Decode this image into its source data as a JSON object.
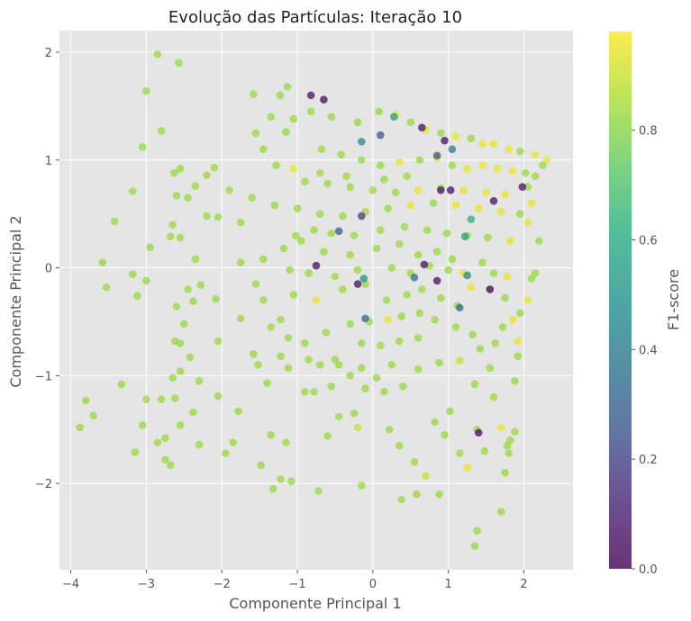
{
  "chart_data": {
    "type": "scatter",
    "title": "Evolução das Partículas: Iteração 10",
    "xlabel": "Componente Principal 1",
    "ylabel": "Componente Principal 2",
    "xlim": [
      -4.15,
      2.65
    ],
    "ylim": [
      -2.8,
      2.2
    ],
    "xticks": [
      -4,
      -3,
      -2,
      -1,
      0,
      1,
      2
    ],
    "yticks": [
      -2,
      -1,
      0,
      1,
      2
    ],
    "grid": true,
    "colorbar": {
      "label": "F1-score",
      "range": [
        0.0,
        0.98
      ],
      "ticks": [
        0.0,
        0.2,
        0.4,
        0.6,
        0.8
      ],
      "colormap": "viridis"
    },
    "background_color": "#e5e5e5",
    "point_alpha": 0.75,
    "points": [
      [
        -2.85,
        1.98,
        0.83
      ],
      [
        -2.57,
        1.9,
        0.83
      ],
      [
        -3.0,
        1.64,
        0.83
      ],
      [
        -2.8,
        1.27,
        0.83
      ],
      [
        -3.05,
        1.12,
        0.83
      ],
      [
        -3.18,
        0.71,
        0.83
      ],
      [
        -3.42,
        0.43,
        0.83
      ],
      [
        -3.58,
        0.05,
        0.83
      ],
      [
        -3.53,
        -0.18,
        0.83
      ],
      [
        -3.18,
        -0.06,
        0.83
      ],
      [
        -3.12,
        -0.26,
        0.83
      ],
      [
        -3.0,
        -0.12,
        0.83
      ],
      [
        -2.95,
        0.19,
        0.83
      ],
      [
        -2.68,
        0.29,
        0.83
      ],
      [
        -2.65,
        0.4,
        0.83
      ],
      [
        -2.6,
        0.67,
        0.83
      ],
      [
        -2.63,
        0.88,
        0.83
      ],
      [
        -2.55,
        0.92,
        0.83
      ],
      [
        -2.45,
        0.65,
        0.83
      ],
      [
        -2.35,
        0.76,
        0.83
      ],
      [
        -2.2,
        0.86,
        0.83
      ],
      [
        -2.1,
        0.93,
        0.83
      ],
      [
        -1.58,
        1.61,
        0.83
      ],
      [
        -1.23,
        1.6,
        0.83
      ],
      [
        -1.13,
        1.68,
        0.83
      ],
      [
        -1.55,
        1.25,
        0.83
      ],
      [
        -1.45,
        1.1,
        0.83
      ],
      [
        -1.15,
        1.26,
        0.83
      ],
      [
        -2.2,
        0.48,
        0.83
      ],
      [
        -2.05,
        0.47,
        0.83
      ],
      [
        -1.75,
        0.42,
        0.83
      ],
      [
        -2.55,
        0.28,
        0.83
      ],
      [
        -2.35,
        0.08,
        0.83
      ],
      [
        -2.28,
        -0.16,
        0.83
      ],
      [
        -2.08,
        -0.29,
        0.83
      ],
      [
        -2.38,
        -0.31,
        0.83
      ],
      [
        -2.45,
        -0.2,
        0.83
      ],
      [
        -2.6,
        -0.36,
        0.83
      ],
      [
        -2.5,
        -0.52,
        0.83
      ],
      [
        -2.55,
        -0.7,
        0.83
      ],
      [
        -2.62,
        -0.68,
        0.83
      ],
      [
        -2.42,
        -0.83,
        0.83
      ],
      [
        -2.05,
        -0.68,
        0.83
      ],
      [
        -2.3,
        -1.05,
        0.83
      ],
      [
        -2.55,
        -0.96,
        0.83
      ],
      [
        -2.65,
        -1.02,
        0.83
      ],
      [
        -2.8,
        -1.22,
        0.83
      ],
      [
        -2.62,
        -1.21,
        0.83
      ],
      [
        -2.55,
        -1.46,
        0.83
      ],
      [
        -2.38,
        -1.34,
        0.83
      ],
      [
        -2.05,
        -1.19,
        0.83
      ],
      [
        -1.78,
        -1.33,
        0.83
      ],
      [
        -1.85,
        -1.62,
        0.83
      ],
      [
        -1.95,
        -1.72,
        0.83
      ],
      [
        -2.3,
        -1.64,
        0.83
      ],
      [
        -2.75,
        -1.58,
        0.83
      ],
      [
        -2.85,
        -1.62,
        0.83
      ],
      [
        -2.75,
        -1.78,
        0.83
      ],
      [
        -2.68,
        -1.83,
        0.83
      ],
      [
        -3.15,
        -1.71,
        0.83
      ],
      [
        -3.05,
        -1.46,
        0.83
      ],
      [
        -3.0,
        -1.22,
        0.83
      ],
      [
        -3.33,
        -1.08,
        0.83
      ],
      [
        -3.7,
        -1.37,
        0.83
      ],
      [
        -3.8,
        -1.23,
        0.83
      ],
      [
        -3.88,
        -1.48,
        0.83
      ],
      [
        -1.48,
        -1.83,
        0.83
      ],
      [
        -1.08,
        -1.98,
        0.83
      ],
      [
        -1.22,
        -1.96,
        0.83
      ],
      [
        -1.32,
        -2.05,
        0.83
      ],
      [
        -0.72,
        -2.07,
        0.83
      ],
      [
        -0.15,
        -2.02,
        0.83
      ],
      [
        0.38,
        -2.15,
        0.83
      ],
      [
        0.58,
        -2.1,
        0.83
      ],
      [
        0.88,
        -2.1,
        0.83
      ],
      [
        1.38,
        -2.44,
        0.83
      ],
      [
        1.7,
        -2.26,
        0.83
      ],
      [
        1.35,
        -2.58,
        0.83
      ],
      [
        -1.35,
        -1.55,
        0.83
      ],
      [
        -1.15,
        -1.62,
        0.83
      ],
      [
        -0.6,
        -1.56,
        0.83
      ],
      [
        -0.45,
        -1.38,
        0.83
      ],
      [
        -0.25,
        -1.35,
        0.83
      ],
      [
        -0.2,
        -1.48,
        0.9
      ],
      [
        0.22,
        -1.5,
        0.83
      ],
      [
        0.35,
        -1.65,
        0.83
      ],
      [
        0.55,
        -1.8,
        0.83
      ],
      [
        0.7,
        -1.93,
        0.9
      ],
      [
        0.95,
        -1.55,
        0.83
      ],
      [
        1.15,
        -1.72,
        0.83
      ],
      [
        1.25,
        -1.85,
        0.95
      ],
      [
        1.48,
        -1.7,
        0.83
      ],
      [
        1.75,
        -1.9,
        0.83
      ],
      [
        1.8,
        -1.72,
        0.83
      ],
      [
        1.82,
        -1.6,
        0.83
      ],
      [
        1.7,
        -1.48,
        0.95
      ],
      [
        1.88,
        -1.52,
        0.83
      ],
      [
        1.78,
        -1.65,
        0.83
      ],
      [
        1.38,
        -1.5,
        0.83
      ],
      [
        1.02,
        -1.33,
        0.83
      ],
      [
        0.82,
        -1.43,
        0.83
      ],
      [
        0.15,
        -1.15,
        0.83
      ],
      [
        -0.1,
        -1.12,
        0.83
      ],
      [
        -0.55,
        -1.1,
        0.83
      ],
      [
        -0.9,
        -1.15,
        0.83
      ],
      [
        -0.78,
        -1.15,
        0.83
      ],
      [
        -1.12,
        -0.93,
        0.83
      ],
      [
        -1.4,
        -1.07,
        0.83
      ],
      [
        -1.52,
        -0.9,
        0.83
      ],
      [
        -1.58,
        -0.8,
        0.83
      ],
      [
        -1.22,
        -0.82,
        0.83
      ],
      [
        -0.85,
        -0.85,
        0.83
      ],
      [
        -0.7,
        -0.9,
        0.83
      ],
      [
        -0.45,
        -0.9,
        0.83
      ],
      [
        -0.15,
        -0.93,
        0.83
      ],
      [
        0.25,
        -0.9,
        0.83
      ],
      [
        0.6,
        -0.94,
        0.83
      ],
      [
        0.88,
        -0.88,
        0.83
      ],
      [
        1.15,
        -0.86,
        0.9
      ],
      [
        1.35,
        -1.08,
        0.83
      ],
      [
        1.55,
        -0.93,
        0.83
      ],
      [
        1.6,
        -1.2,
        0.83
      ],
      [
        1.88,
        -1.05,
        0.83
      ],
      [
        1.92,
        -0.82,
        0.83
      ],
      [
        1.92,
        -0.68,
        0.95
      ],
      [
        -1.75,
        -0.47,
        0.83
      ],
      [
        -1.45,
        -0.3,
        0.83
      ],
      [
        -1.22,
        -0.48,
        0.83
      ],
      [
        -1.35,
        -0.55,
        0.83
      ],
      [
        -1.12,
        -0.65,
        0.83
      ],
      [
        -0.9,
        -0.7,
        0.83
      ],
      [
        -0.62,
        -0.6,
        0.83
      ],
      [
        -0.3,
        -0.52,
        0.83
      ],
      [
        -0.05,
        -0.5,
        0.83
      ],
      [
        0.2,
        -0.48,
        0.95
      ],
      [
        0.38,
        -0.45,
        0.83
      ],
      [
        0.62,
        -0.42,
        0.83
      ],
      [
        0.82,
        -0.48,
        0.83
      ],
      [
        1.1,
        -0.55,
        0.83
      ],
      [
        1.32,
        -0.62,
        0.83
      ],
      [
        1.42,
        -0.75,
        0.83
      ],
      [
        1.62,
        -0.7,
        0.83
      ],
      [
        1.72,
        -0.55,
        0.83
      ],
      [
        1.85,
        -0.48,
        0.95
      ],
      [
        1.95,
        -0.42,
        0.83
      ],
      [
        2.05,
        -0.3,
        0.95
      ],
      [
        2.1,
        -0.1,
        0.83
      ],
      [
        1.75,
        -0.28,
        0.83
      ],
      [
        1.55,
        -0.2,
        0.83
      ],
      [
        1.3,
        -0.18,
        0.95
      ],
      [
        1.12,
        -0.35,
        0.83
      ],
      [
        0.9,
        -0.28,
        0.83
      ],
      [
        0.65,
        -0.2,
        0.83
      ],
      [
        0.45,
        -0.25,
        0.83
      ],
      [
        0.18,
        -0.3,
        0.83
      ],
      [
        -0.1,
        -0.15,
        0.83
      ],
      [
        -0.4,
        -0.2,
        0.83
      ],
      [
        -0.75,
        -0.3,
        0.95
      ],
      [
        -1.05,
        -0.25,
        0.83
      ],
      [
        -1.55,
        -0.15,
        0.83
      ],
      [
        -1.75,
        0.05,
        0.83
      ],
      [
        -1.45,
        0.08,
        0.83
      ],
      [
        -1.18,
        0.18,
        0.83
      ],
      [
        -0.95,
        0.25,
        0.83
      ],
      [
        -0.65,
        0.15,
        0.83
      ],
      [
        -0.3,
        0.12,
        0.83
      ],
      [
        0.05,
        0.18,
        0.83
      ],
      [
        0.35,
        0.22,
        0.83
      ],
      [
        0.6,
        0.12,
        0.83
      ],
      [
        0.85,
        0.15,
        0.83
      ],
      [
        1.05,
        0.08,
        0.83
      ],
      [
        1.2,
        -0.05,
        0.95
      ],
      [
        1.45,
        0.05,
        0.83
      ],
      [
        1.6,
        -0.05,
        0.83
      ],
      [
        1.78,
        -0.08,
        0.95
      ],
      [
        2.15,
        -0.05,
        0.83
      ],
      [
        2.2,
        0.25,
        0.83
      ],
      [
        2.05,
        0.42,
        0.95
      ],
      [
        2.1,
        0.6,
        0.95
      ],
      [
        2.05,
        0.75,
        0.83
      ],
      [
        2.15,
        0.85,
        0.83
      ],
      [
        2.25,
        0.95,
        0.83
      ],
      [
        2.3,
        1.0,
        0.95
      ],
      [
        2.15,
        1.05,
        0.95
      ],
      [
        1.95,
        1.08,
        0.83
      ],
      [
        1.8,
        1.1,
        0.95
      ],
      [
        1.6,
        1.15,
        0.95
      ],
      [
        1.45,
        1.15,
        0.95
      ],
      [
        1.3,
        1.2,
        0.83
      ],
      [
        1.1,
        1.22,
        0.95
      ],
      [
        0.9,
        1.25,
        0.83
      ],
      [
        0.7,
        1.28,
        0.95
      ],
      [
        0.5,
        1.35,
        0.83
      ],
      [
        0.3,
        1.42,
        0.95
      ],
      [
        0.08,
        1.45,
        0.83
      ],
      [
        -0.2,
        1.35,
        0.83
      ],
      [
        -0.55,
        1.4,
        0.83
      ],
      [
        -0.82,
        1.45,
        0.83
      ],
      [
        -1.05,
        1.38,
        0.83
      ],
      [
        -1.35,
        1.4,
        0.83
      ],
      [
        -0.68,
        1.1,
        0.83
      ],
      [
        -0.42,
        1.05,
        0.83
      ],
      [
        -0.15,
        1.0,
        0.83
      ],
      [
        0.1,
        0.95,
        0.83
      ],
      [
        0.35,
        0.98,
        0.95
      ],
      [
        0.62,
        1.0,
        0.83
      ],
      [
        0.85,
        1.02,
        0.95
      ],
      [
        1.05,
        0.95,
        0.83
      ],
      [
        1.25,
        0.92,
        0.95
      ],
      [
        1.45,
        0.95,
        0.95
      ],
      [
        1.65,
        0.92,
        0.95
      ],
      [
        1.85,
        0.9,
        0.95
      ],
      [
        2.02,
        0.88,
        0.83
      ],
      [
        -1.9,
        0.72,
        0.83
      ],
      [
        -1.6,
        0.65,
        0.83
      ],
      [
        -1.3,
        0.58,
        0.83
      ],
      [
        -1.0,
        0.55,
        0.83
      ],
      [
        -0.7,
        0.5,
        0.83
      ],
      [
        -0.4,
        0.48,
        0.83
      ],
      [
        -0.1,
        0.52,
        0.83
      ],
      [
        0.2,
        0.55,
        0.83
      ],
      [
        0.5,
        0.58,
        0.95
      ],
      [
        0.8,
        0.6,
        0.83
      ],
      [
        1.1,
        0.58,
        0.95
      ],
      [
        1.4,
        0.55,
        0.95
      ],
      [
        1.7,
        0.52,
        0.95
      ],
      [
        1.95,
        0.5,
        0.83
      ],
      [
        -0.9,
        0.8,
        0.83
      ],
      [
        -0.6,
        0.78,
        0.83
      ],
      [
        -0.3,
        0.75,
        0.83
      ],
      [
        0.0,
        0.72,
        0.83
      ],
      [
        0.3,
        0.7,
        0.83
      ],
      [
        0.6,
        0.72,
        0.95
      ],
      [
        0.9,
        0.74,
        0.83
      ],
      [
        1.2,
        0.72,
        0.95
      ],
      [
        1.5,
        0.7,
        0.95
      ],
      [
        1.75,
        0.68,
        0.95
      ],
      [
        -1.1,
        -0.02,
        0.83
      ],
      [
        -0.85,
        -0.05,
        0.83
      ],
      [
        -0.5,
        -0.08,
        0.83
      ],
      [
        -0.2,
        -0.02,
        0.83
      ],
      [
        0.25,
        0.0,
        0.83
      ],
      [
        0.5,
        -0.05,
        0.83
      ],
      [
        0.75,
        0.02,
        0.83
      ],
      [
        1.0,
        -0.02,
        0.83
      ],
      [
        -1.28,
        0.95,
        0.83
      ],
      [
        -1.05,
        0.92,
        0.95
      ],
      [
        -0.7,
        0.88,
        0.83
      ],
      [
        -0.35,
        0.85,
        0.83
      ],
      [
        0.15,
        0.82,
        0.83
      ],
      [
        0.45,
        0.85,
        0.83
      ],
      [
        -0.15,
        -0.7,
        0.83
      ],
      [
        0.1,
        -0.72,
        0.83
      ],
      [
        0.35,
        -0.68,
        0.83
      ],
      [
        0.6,
        -0.65,
        0.83
      ],
      [
        -0.5,
        -0.85,
        0.83
      ],
      [
        -0.3,
        -1.0,
        0.83
      ],
      [
        0.05,
        -1.02,
        0.83
      ],
      [
        0.4,
        -1.1,
        0.83
      ],
      [
        -1.02,
        0.3,
        0.83
      ],
      [
        -0.78,
        0.35,
        0.83
      ],
      [
        -0.55,
        0.32,
        0.83
      ],
      [
        -0.25,
        0.3,
        0.83
      ],
      [
        0.1,
        0.35,
        0.83
      ],
      [
        0.42,
        0.38,
        0.83
      ],
      [
        0.72,
        0.35,
        0.83
      ],
      [
        0.98,
        0.32,
        0.83
      ],
      [
        1.25,
        0.3,
        0.83
      ],
      [
        1.52,
        0.28,
        0.83
      ],
      [
        1.82,
        0.25,
        0.95
      ],
      [
        -0.82,
        1.6,
        0.05
      ],
      [
        -0.65,
        1.56,
        0.05
      ],
      [
        0.65,
        1.3,
        0.05
      ],
      [
        0.9,
        0.72,
        0.05
      ],
      [
        1.03,
        0.72,
        0.05
      ],
      [
        1.6,
        0.62,
        0.05
      ],
      [
        1.98,
        0.75,
        0.05
      ],
      [
        0.68,
        0.03,
        0.05
      ],
      [
        -0.75,
        0.02,
        0.05
      ],
      [
        -0.2,
        -0.15,
        0.05
      ],
      [
        0.85,
        -0.12,
        0.05
      ],
      [
        1.55,
        -0.2,
        0.05
      ],
      [
        1.4,
        -1.53,
        0.05
      ],
      [
        0.95,
        1.18,
        0.05
      ],
      [
        -0.15,
        0.48,
        0.18
      ],
      [
        0.1,
        1.23,
        0.25
      ],
      [
        0.85,
        1.04,
        0.25
      ],
      [
        -0.45,
        0.34,
        0.28
      ],
      [
        -0.1,
        -0.47,
        0.32
      ],
      [
        1.15,
        -0.37,
        0.32
      ],
      [
        0.55,
        -0.09,
        0.35
      ],
      [
        1.05,
        1.1,
        0.4
      ],
      [
        -0.15,
        1.17,
        0.45
      ],
      [
        1.25,
        -0.07,
        0.45
      ],
      [
        -0.12,
        -0.1,
        0.48
      ],
      [
        0.28,
        1.4,
        0.52
      ],
      [
        1.22,
        0.29,
        0.55
      ],
      [
        1.3,
        0.45,
        0.62
      ]
    ]
  }
}
